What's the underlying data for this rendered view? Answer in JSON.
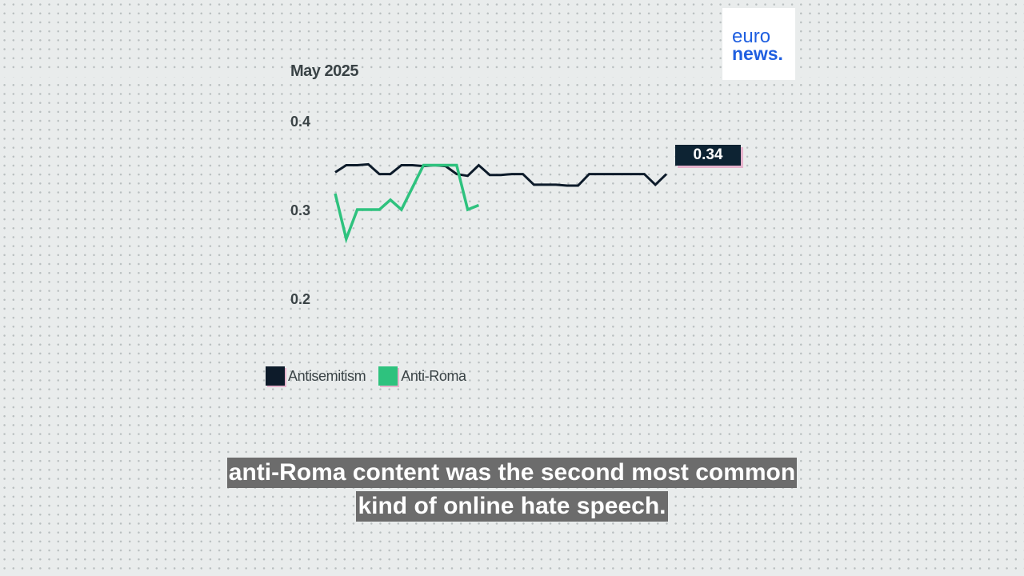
{
  "logo": {
    "line1": "euro",
    "line2": "news."
  },
  "subtitles": [
    "anti-Roma content was the second most common",
    "kind of online hate speech."
  ],
  "chart_data": {
    "type": "line",
    "period_label": "May 2025",
    "x": [
      1,
      2,
      3,
      4,
      5,
      6,
      7,
      8,
      9,
      10,
      11,
      12,
      13,
      14,
      15,
      16,
      17,
      18,
      19,
      20,
      21,
      22,
      23,
      24,
      25,
      26,
      27,
      28,
      29,
      30,
      31
    ],
    "ylim": [
      0.2,
      0.4
    ],
    "yticks": [
      "0.4",
      "0.3",
      "0.2"
    ],
    "ytick_values": [
      0.4,
      0.3,
      0.2
    ],
    "grid": false,
    "legend_position": "bottom-left",
    "series": [
      {
        "name": "Antisemitism",
        "color": "#0d1b2a",
        "values": [
          0.342,
          0.35,
          0.35,
          0.351,
          0.34,
          0.34,
          0.35,
          0.35,
          0.349,
          0.35,
          0.349,
          0.34,
          0.338,
          0.35,
          0.339,
          0.339,
          0.34,
          0.34,
          0.328,
          0.328,
          0.328,
          0.327,
          0.327,
          0.34,
          0.34,
          0.34,
          0.34,
          0.34,
          0.34,
          0.328,
          0.34
        ]
      },
      {
        "name": "Anti-Roma",
        "color": "#2ec27e",
        "values": [
          0.318,
          0.267,
          0.3,
          0.3,
          0.3,
          0.311,
          0.3,
          0.325,
          0.35,
          0.35,
          0.35,
          0.35,
          0.3,
          0.305,
          null,
          null,
          null,
          null,
          null,
          null,
          null,
          null,
          null,
          null,
          null,
          null,
          null,
          null,
          null,
          null,
          null
        ]
      }
    ],
    "callout": {
      "label": "0.34",
      "series": "Antisemitism",
      "value": 0.34
    }
  }
}
